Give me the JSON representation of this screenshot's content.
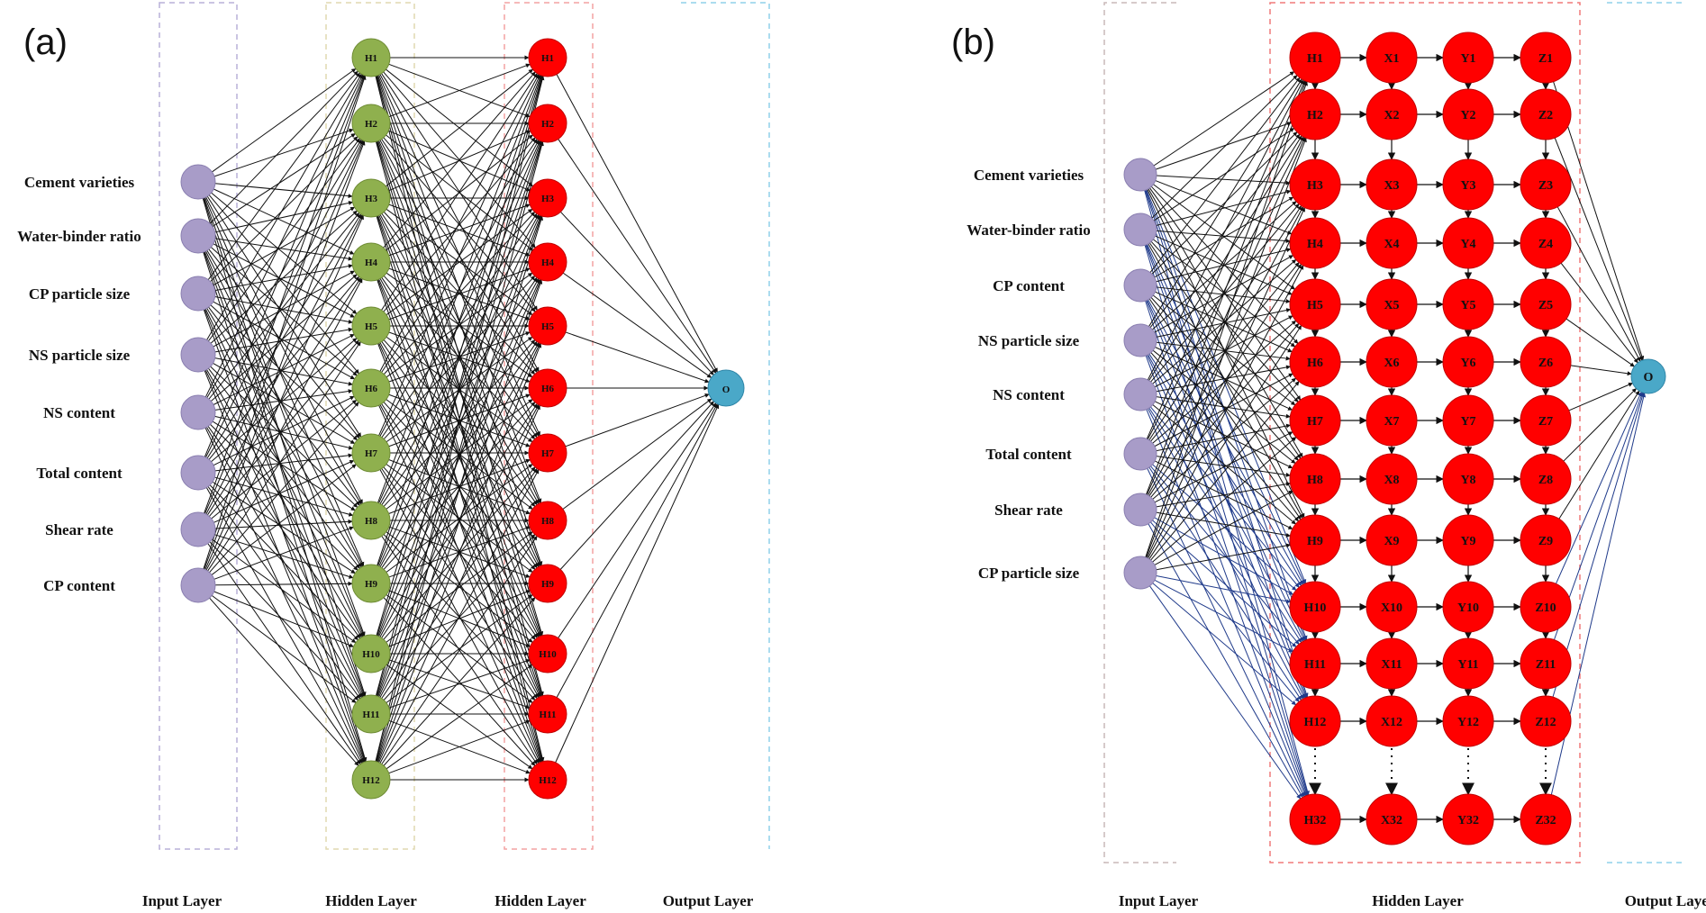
{
  "panel_a": {
    "panel_label": "(a)",
    "inputs": [
      "Cement varieties",
      "Water-binder ratio",
      "CP particle size",
      "NS particle size",
      "NS content",
      "Total content",
      "Shear rate",
      "CP content"
    ],
    "hidden1": [
      "H1",
      "H2",
      "H3",
      "H4",
      "H5",
      "H6",
      "H7",
      "H8",
      "H9",
      "H10",
      "H11",
      "H12"
    ],
    "hidden2": [
      "H1",
      "H2",
      "H3",
      "H4",
      "H5",
      "H6",
      "H7",
      "H8",
      "H9",
      "H10",
      "H11",
      "H12"
    ],
    "output": "O",
    "layer_labels": [
      "Input Layer",
      "Hidden Layer",
      "Hidden Layer",
      "Output Layer"
    ]
  },
  "panel_b": {
    "panel_label": "(b)",
    "inputs": [
      "Cement varieties",
      "Water-binder ratio",
      "CP content",
      "NS particle size",
      "NS content",
      "Total content",
      "Shear rate",
      "CP particle size"
    ],
    "columns": [
      [
        "H1",
        "H2",
        "H3",
        "H4",
        "H5",
        "H6",
        "H7",
        "H8",
        "H9",
        "H10",
        "H11",
        "H12",
        "H32"
      ],
      [
        "X1",
        "X2",
        "X3",
        "X4",
        "X5",
        "X6",
        "X7",
        "X8",
        "X9",
        "X10",
        "X11",
        "X12",
        "X32"
      ],
      [
        "Y1",
        "Y2",
        "Y3",
        "Y4",
        "Y5",
        "Y6",
        "Y7",
        "Y8",
        "Y9",
        "Y10",
        "Y11",
        "Y12",
        "Y32"
      ],
      [
        "Z1",
        "Z2",
        "Z3",
        "Z4",
        "Z5",
        "Z6",
        "Z7",
        "Z8",
        "Z9",
        "Z10",
        "Z11",
        "Z12",
        "Z32"
      ]
    ],
    "output": "O",
    "layer_labels": [
      "Input Layer",
      "Hidden Layer",
      "Output Layer"
    ]
  },
  "colors": {
    "input_node": "#a89cc8",
    "hidden_green": "#8fb04e",
    "hidden_red": "#ff0000",
    "output_node": "#4aa8c8",
    "edge": "#111111",
    "edge_blue": "#1f3a8a"
  }
}
